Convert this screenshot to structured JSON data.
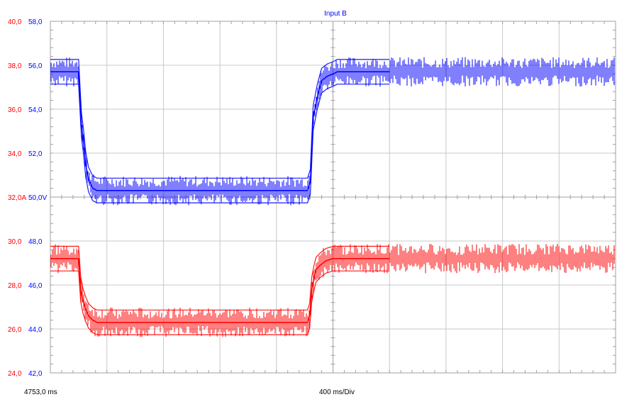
{
  "chart_data": {
    "type": "line",
    "title": "Input B",
    "x_start_label": "4753,0 ms",
    "x_scale_label": "400 ms/Div",
    "x_unit": "ms",
    "x_start": 4753.0,
    "x_per_div": 400,
    "x_divisions": 10,
    "y_divisions": 8,
    "left_axis": {
      "color": "#ff0000",
      "ticks": [
        "40,0",
        "38,0",
        "36,0",
        "34,0",
        "32,0A",
        "30,0",
        "28,0",
        "26,0",
        "24,0"
      ],
      "ylim": [
        24.0,
        40.0
      ],
      "unit": "A"
    },
    "right_axis": {
      "color": "#0000ff",
      "ticks": [
        "58,0",
        "56,0",
        "54,0",
        "52,0",
        "50,0V",
        "48,0",
        "46,0",
        "44,0",
        "42,0"
      ],
      "ylim": [
        42.0,
        58.0
      ],
      "unit": "V"
    },
    "grid": true,
    "series": [
      {
        "color": "#0000ff",
        "axis": "right",
        "x": [
          4753,
          4953,
          4973,
          4988,
          5003,
          5023,
          5053,
          5083,
          5133,
          6573,
          6593,
          6613,
          6643,
          6673,
          6713,
          6753,
          6783,
          6813,
          7153
        ],
        "values": [
          55.7,
          55.7,
          53.3,
          52.5,
          51.5,
          50.8,
          50.4,
          50.3,
          50.3,
          50.3,
          50.7,
          53.6,
          54.6,
          55.3,
          55.5,
          55.6,
          55.7,
          55.7,
          55.7
        ]
      },
      {
        "color": "#ff0000",
        "axis": "left",
        "x": [
          4753,
          4953,
          4968,
          4983,
          5003,
          5023,
          5053,
          5083,
          5133,
          6573,
          6588,
          6603,
          6618,
          6633,
          6663,
          6703,
          6753,
          7153
        ],
        "values": [
          29.2,
          29.2,
          27.8,
          27.3,
          26.9,
          26.6,
          26.4,
          26.3,
          26.3,
          26.3,
          26.6,
          27.8,
          28.3,
          28.7,
          28.9,
          29.1,
          29.2,
          29.2
        ]
      }
    ]
  }
}
